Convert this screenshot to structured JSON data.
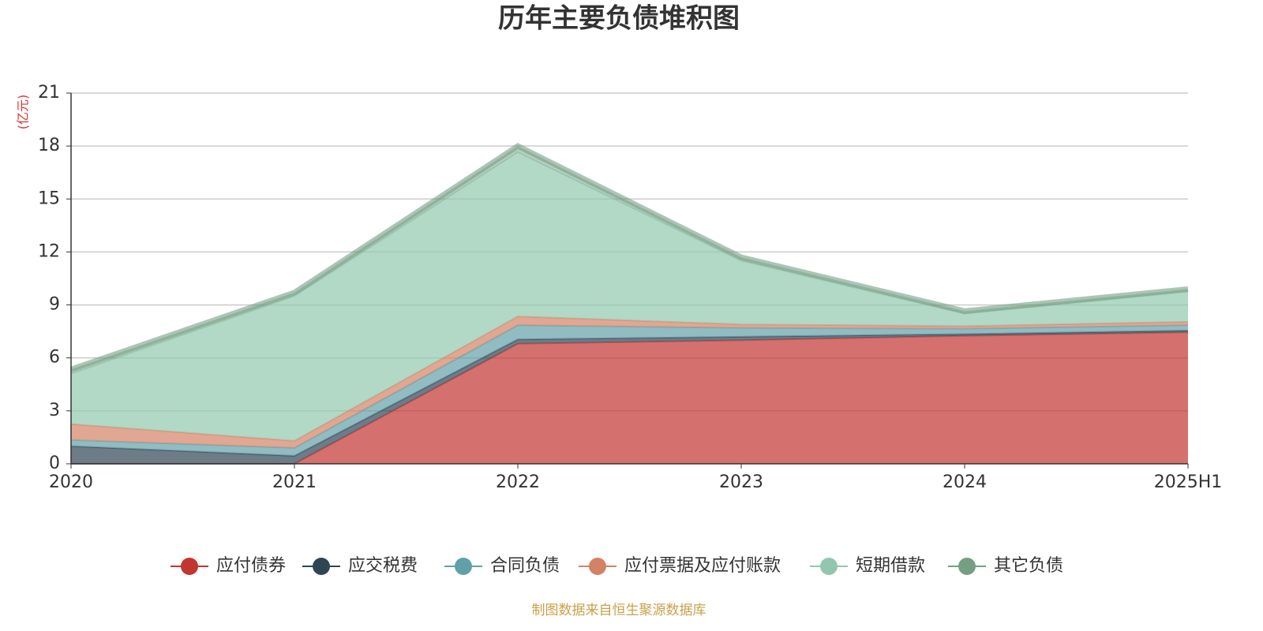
{
  "chart_data": {
    "type": "stacked_area",
    "title": "历年主要负债堆积图",
    "y_label": "(亿元)",
    "source": "制图数据来自恒生聚源数据库",
    "categories": [
      "2020",
      "2021",
      "2022",
      "2023",
      "2024",
      "2025H1"
    ],
    "series": [
      {
        "name": "应付债券",
        "color": "#c23531",
        "values": [
          0,
          0,
          6.8,
          7.0,
          7.25,
          7.45
        ]
      },
      {
        "name": "应交税费",
        "color": "#2f4554",
        "values": [
          1.0,
          0.45,
          0.25,
          0.2,
          0.1,
          0.1
        ]
      },
      {
        "name": "合同负债",
        "color": "#61a0a8",
        "values": [
          0.35,
          0.45,
          0.8,
          0.5,
          0.3,
          0.3
        ]
      },
      {
        "name": "应付票据及应付账款",
        "color": "#d48265",
        "values": [
          0.9,
          0.4,
          0.5,
          0.2,
          0.15,
          0.2
        ]
      },
      {
        "name": "短期借款",
        "color": "#91c7ae",
        "values": [
          2.85,
          8.2,
          9.3,
          3.6,
          0.7,
          1.7
        ]
      },
      {
        "name": "其它负债",
        "color": "#749f83",
        "values": [
          0.25,
          0.2,
          0.35,
          0.2,
          0.15,
          0.15
        ]
      }
    ],
    "ylim": [
      0,
      21
    ],
    "yticks": [
      0,
      3,
      6,
      9,
      12,
      15,
      18,
      21
    ],
    "grid": true
  }
}
